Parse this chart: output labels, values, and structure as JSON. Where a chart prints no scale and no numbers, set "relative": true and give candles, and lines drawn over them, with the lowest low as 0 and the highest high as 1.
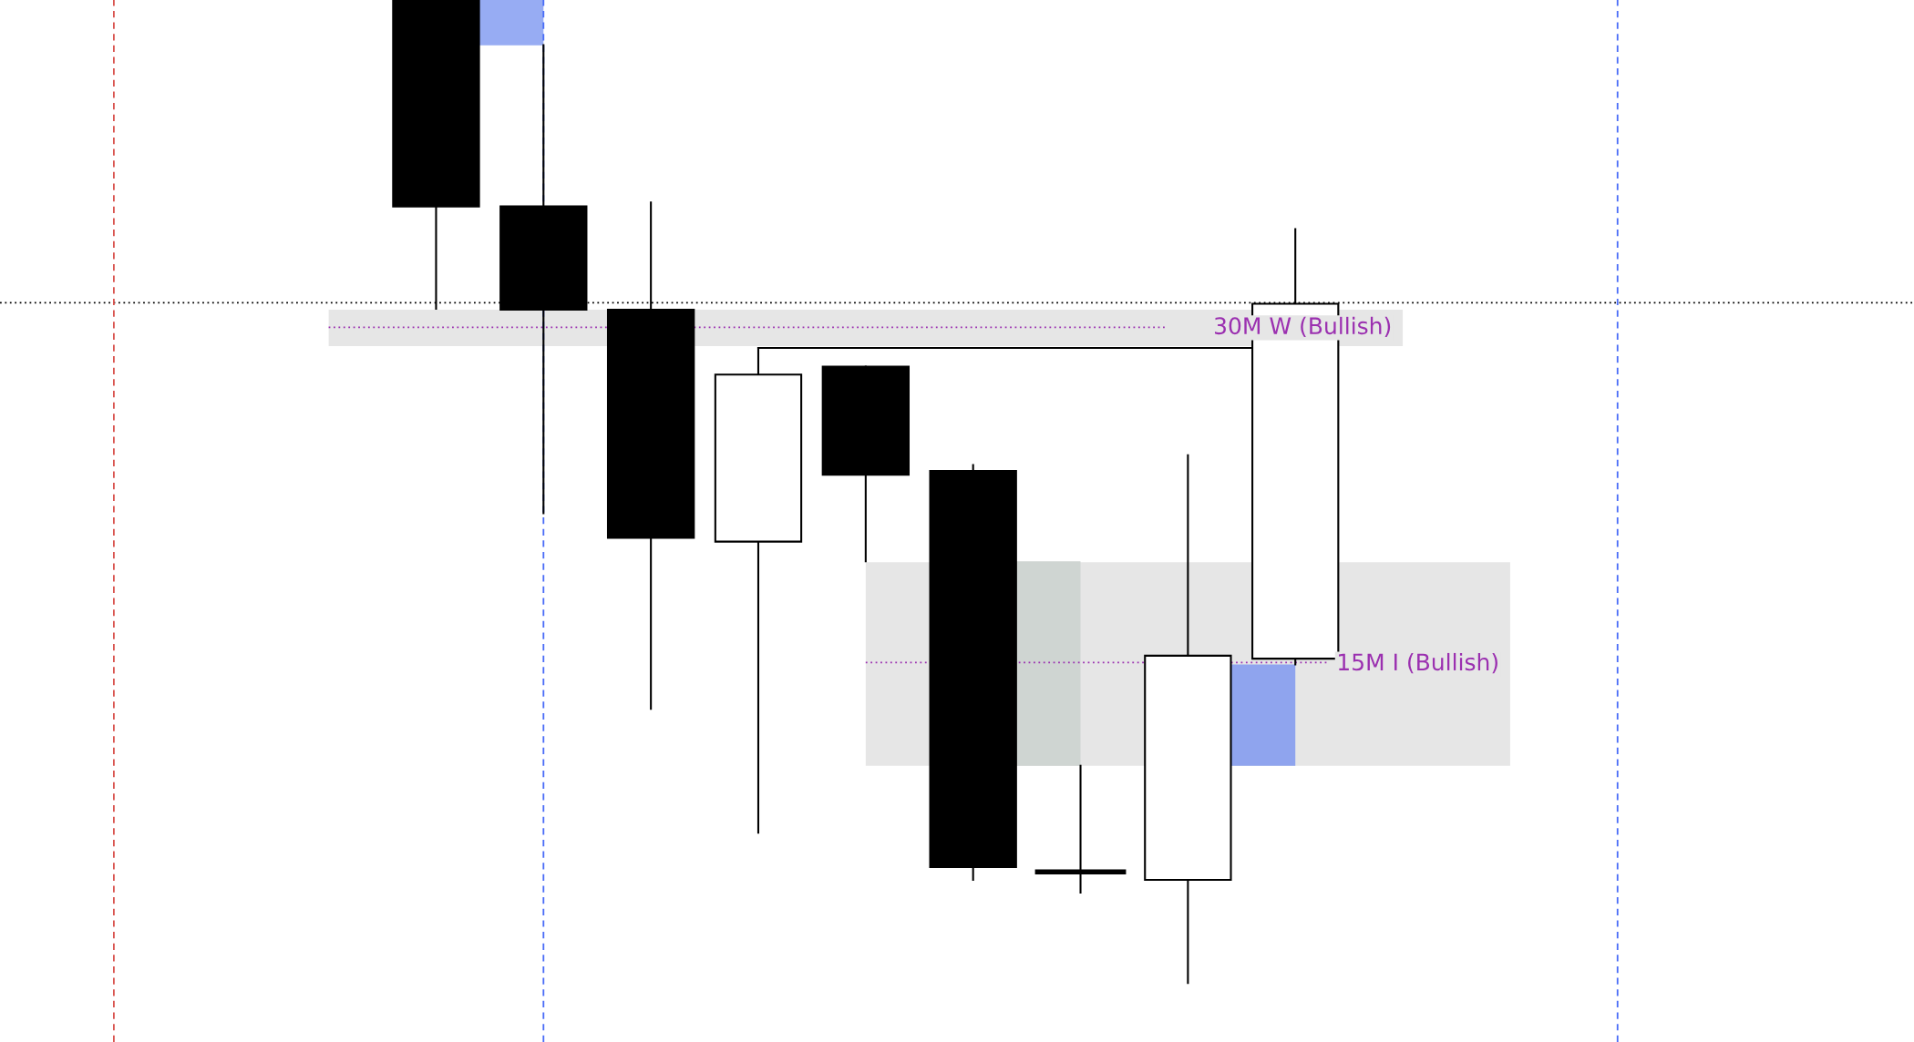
{
  "chart_data": {
    "type": "candlestick",
    "relative": true,
    "categories": [
      null,
      null,
      null,
      null,
      null,
      null,
      null,
      null,
      null
    ],
    "ohlc": [
      [
        1.0,
        1.0,
        0.686,
        0.79
      ],
      [
        0.79,
        0.954,
        0.478,
        0.685
      ],
      [
        0.685,
        0.794,
        0.279,
        0.453
      ],
      [
        0.449,
        0.646,
        0.153,
        0.619
      ],
      [
        0.627,
        0.627,
        0.429,
        0.517
      ],
      [
        0.521,
        0.527,
        0.105,
        0.118
      ],
      [
        0.113,
        0.221,
        0.092,
        0.113
      ],
      [
        0.105,
        0.537,
        0.0,
        0.333
      ],
      [
        0.33,
        0.767,
        0.324,
        0.691
      ]
    ],
    "bands": [
      {
        "axis": "y",
        "from": 0.648,
        "to": 0.685,
        "label": "30M W (Bullish)",
        "color": "#e6e6e6"
      },
      {
        "axis": "y",
        "from": 0.221,
        "to": 0.428,
        "label": "15M I (Bullish)",
        "color": "#e6e6e6"
      },
      {
        "axis": "y",
        "from": 0.954,
        "to": 1.0,
        "color": "#97acf3"
      },
      {
        "axis": "y",
        "from": 0.221,
        "to": 0.429,
        "color": "#cfd5d2"
      },
      {
        "axis": "y",
        "from": 0.221,
        "to": 0.324,
        "color": "#8fa4ee"
      }
    ],
    "ref_lines": [
      {
        "axis": "y",
        "value": 0.692,
        "color": "#000000",
        "line_style": "dotted"
      },
      {
        "axis": "y",
        "value": 0.667,
        "color": "#9b30b0",
        "line_style": "dotted"
      },
      {
        "axis": "y",
        "value": 0.326,
        "color": "#9b30b0",
        "line_style": "dotted"
      }
    ]
  }
}
